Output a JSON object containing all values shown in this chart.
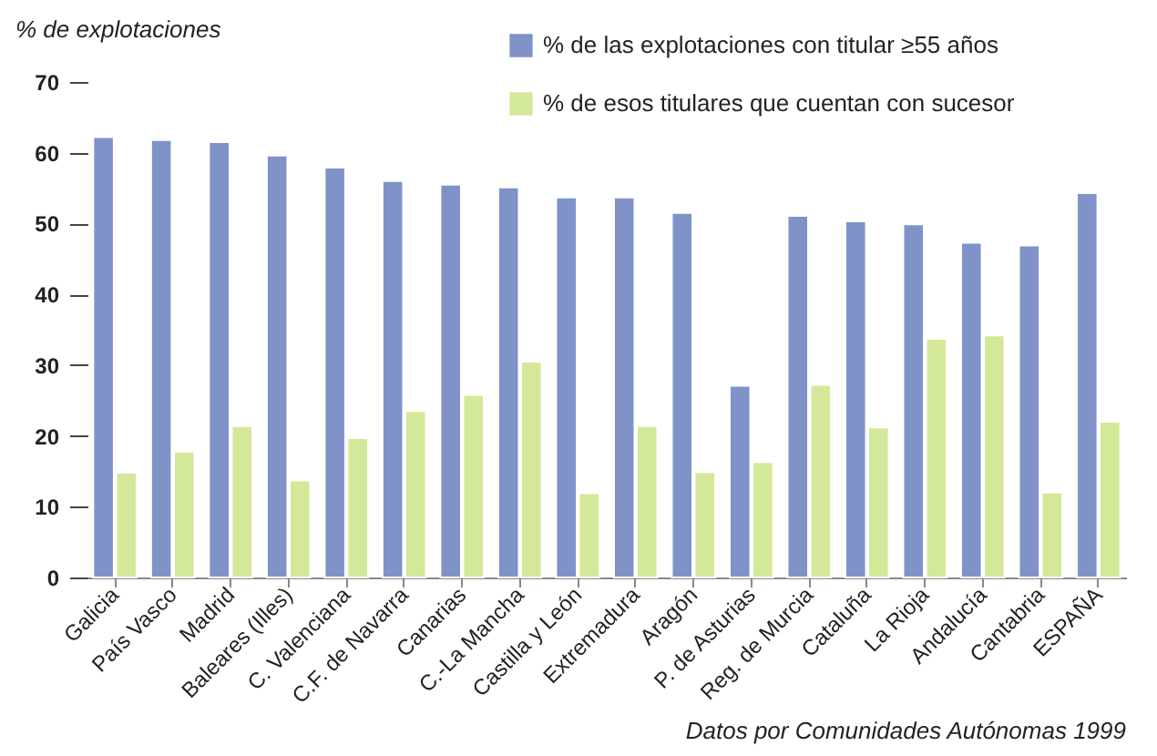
{
  "chart_data": {
    "type": "bar",
    "ylabel": "% de explotaciones",
    "categories": [
      "Galicia",
      "País Vasco",
      "Madrid",
      "Baleares (Illes)",
      "C. Valenciana",
      "C.F. de Navarra",
      "Canarias",
      "C.-La Mancha",
      "Castilla y León",
      "Extremadura",
      "Aragón",
      "P. de Asturias",
      "Reg. de Murcia",
      "Cataluña",
      "La Rioja",
      "Andalucía",
      "Cantabria",
      "ESPAÑA"
    ],
    "series": [
      {
        "name": "% de las explotaciones con titular ≥55 años",
        "color": "#7f93c8",
        "values": [
          62.2,
          61.8,
          61.5,
          59.6,
          57.9,
          56.0,
          55.5,
          55.1,
          53.7,
          53.7,
          51.5,
          27.1,
          51.1,
          50.3,
          49.9,
          47.3,
          46.9,
          54.3
        ]
      },
      {
        "name": "% de esos titulares que cuentan con sucesor",
        "color": "#d4e89a",
        "values": [
          14.8,
          17.8,
          21.4,
          13.7,
          19.7,
          23.5,
          25.8,
          30.5,
          11.9,
          21.4,
          14.9,
          16.3,
          27.2,
          21.2,
          33.7,
          34.2,
          12.0,
          22.0
        ]
      }
    ],
    "ylim": [
      0,
      70
    ],
    "yticks": [
      0,
      10,
      20,
      30,
      40,
      50,
      60,
      70
    ],
    "grid": false,
    "legend": "top",
    "annotations": [
      "Datos por Comunidades Autónomas 1999"
    ]
  }
}
